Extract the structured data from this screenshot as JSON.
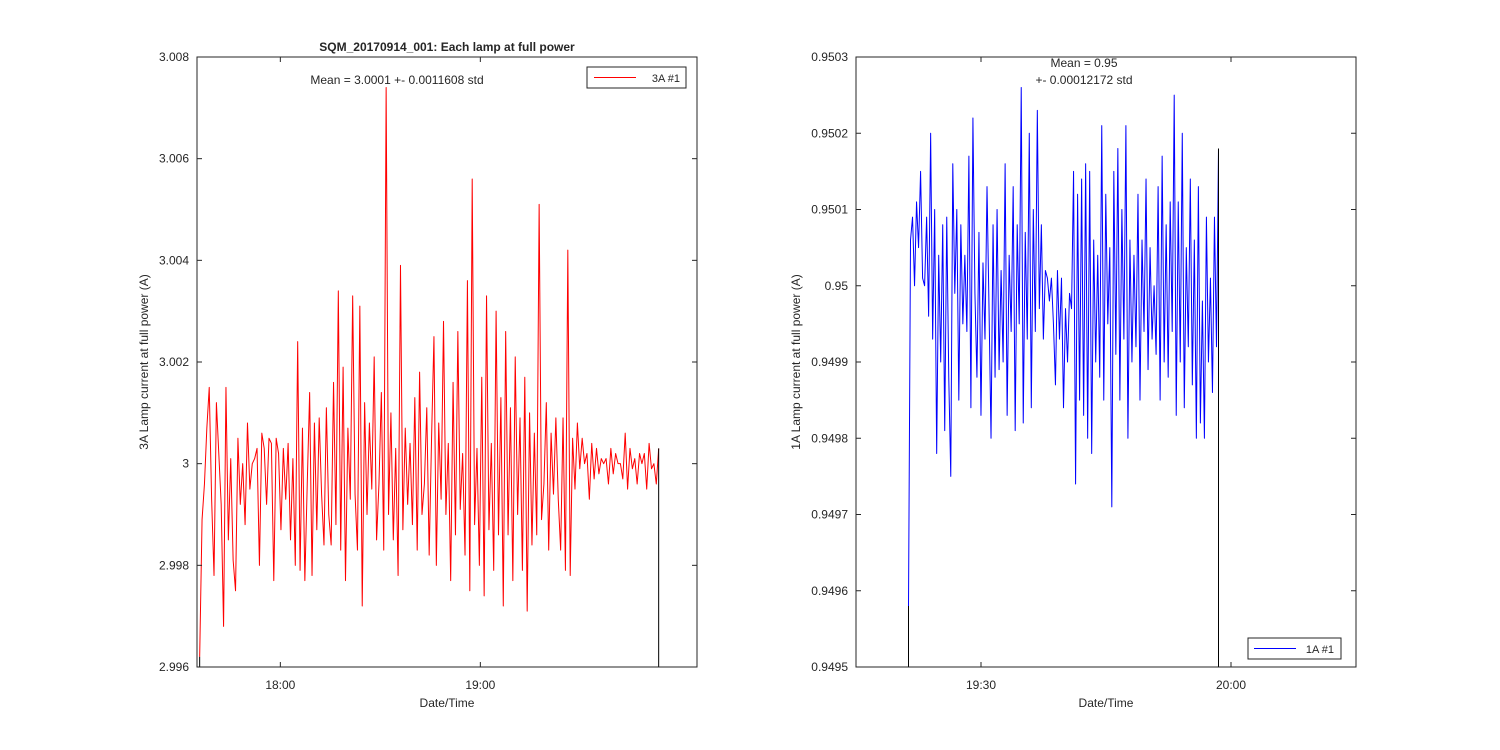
{
  "chart_data": [
    {
      "type": "line",
      "title": "SQM_20170914_001: Each lamp at full power",
      "xlabel": "Date/Time",
      "ylabel": "3A Lamp current at full power (A)",
      "xlim_minutes": [
        1055,
        1205
      ],
      "ylim": [
        2.996,
        3.008
      ],
      "yticks": [
        2.996,
        2.998,
        3.0,
        3.002,
        3.004,
        3.006,
        3.008
      ],
      "ytick_labels": [
        "2.996",
        "2.998",
        "3",
        "3.002",
        "3.004",
        "3.006",
        "3.008"
      ],
      "xticks_minutes": [
        1080,
        1140
      ],
      "xtick_labels": [
        "18:00",
        "19:00"
      ],
      "annotation": [
        "Mean = 3.0001 +- 0.0011608 std"
      ],
      "legend": {
        "label": "3A #1",
        "position": "top-right"
      },
      "series": [
        {
          "name": "3A #1",
          "color": "#ff0000",
          "x_start_minutes": 1055.8,
          "x_end_minutes": 1193.5,
          "values": [
            2.9962,
            2.9989,
            2.9996,
            3.0007,
            3.0015,
            2.9993,
            2.9978,
            3.0012,
            3.0002,
            2.9992,
            2.9968,
            3.0015,
            2.9985,
            3.0001,
            2.9981,
            2.9975,
            3.0005,
            2.9992,
            3.0,
            2.9988,
            3.0008,
            2.9995,
            3.0,
            3.0001,
            3.0003,
            2.998,
            3.0006,
            3.0003,
            2.9992,
            3.0005,
            3.0004,
            2.9977,
            3.0005,
            3.0002,
            2.9987,
            3.0003,
            2.9993,
            3.0004,
            2.9985,
            3.0001,
            2.998,
            3.0024,
            2.9979,
            3.0007,
            2.9977,
            2.9996,
            3.0014,
            2.9978,
            3.0008,
            2.9987,
            3.0009,
            2.9994,
            2.9984,
            3.0011,
            2.999,
            2.9984,
            3.0016,
            2.9988,
            3.0034,
            2.9983,
            3.0019,
            2.9977,
            3.0007,
            2.9993,
            3.0033,
            2.9994,
            2.9983,
            3.0031,
            2.9972,
            3.0012,
            2.999,
            3.0008,
            2.9995,
            3.0021,
            2.9985,
            2.9996,
            3.0014,
            2.9983,
            3.0074,
            2.999,
            3.001,
            2.9985,
            3.0003,
            2.9978,
            3.0039,
            2.9987,
            3.0007,
            2.9992,
            3.0004,
            2.9988,
            3.0013,
            2.9983,
            3.0018,
            2.999,
            2.9996,
            3.0011,
            2.9982,
            3.0005,
            3.0025,
            2.998,
            3.0008,
            2.9993,
            3.0028,
            2.999,
            3.0004,
            2.9977,
            3.0016,
            2.9986,
            3.0026,
            2.9991,
            3.0002,
            2.9982,
            3.0036,
            2.9975,
            3.0056,
            2.9988,
            3.0003,
            2.998,
            3.0017,
            2.9974,
            3.0033,
            2.9987,
            3.0004,
            2.9979,
            3.003,
            2.9986,
            3.0013,
            2.9972,
            3.0026,
            2.9986,
            3.0011,
            2.9977,
            3.0021,
            2.999,
            3.0009,
            2.9979,
            3.0017,
            2.9971,
            3.001,
            2.9984,
            3.0006,
            2.9986,
            3.0051,
            2.9989,
            2.9996,
            3.0012,
            2.9983,
            3.0006,
            2.9994,
            3.0009,
            2.9993,
            2.9983,
            3.0009,
            2.9979,
            3.0042,
            2.9978,
            3.0005,
            2.9995,
            3.0008,
            2.9999,
            3.0005,
            3.0,
            3.0002,
            2.9993,
            3.0004,
            2.9997,
            3.0003,
            2.9998,
            3.0001,
            3.0,
            3.0001,
            2.9996,
            3.0003,
            2.9998,
            3.0002,
            3.0,
            3.0,
            2.9997,
            3.0006,
            2.9995,
            3.0003,
            2.9999,
            3.0001,
            2.9996,
            3.0002,
            3.0,
            3.0002,
            2.9995,
            3.0004,
            2.9999,
            3.0,
            2.9996,
            3.0003
          ]
        }
      ]
    },
    {
      "type": "line",
      "title": "",
      "xlabel": "Date/Time",
      "ylabel": "1A Lamp current at full power (A)",
      "xlim_minutes": [
        1155,
        1215
      ],
      "ylim": [
        0.9495,
        0.9503
      ],
      "yticks": [
        0.9495,
        0.9496,
        0.9497,
        0.9498,
        0.9499,
        0.95,
        0.9501,
        0.9502,
        0.9503
      ],
      "ytick_labels": [
        "0.9495",
        "0.9496",
        "0.9497",
        "0.9498",
        "0.9499",
        "0.95",
        "0.9501",
        "0.9502",
        "0.9503"
      ],
      "xticks_minutes": [
        1170,
        1200
      ],
      "xtick_labels": [
        "19:30",
        "20:00"
      ],
      "annotation": [
        "Mean = 0.95",
        "+- 0.00012172 std"
      ],
      "legend": {
        "label": "1A #1",
        "position": "bottom-right"
      },
      "series": [
        {
          "name": "1A #1",
          "color": "#0000ff",
          "x_start_minutes": 1161.3,
          "x_end_minutes": 1198.5,
          "values": [
            0.94958,
            0.95006,
            0.95009,
            0.95,
            0.95011,
            0.95005,
            0.95015,
            0.95001,
            0.95,
            0.95009,
            0.94996,
            0.9502,
            0.94993,
            0.9501,
            0.94978,
            0.95004,
            0.9499,
            0.95008,
            0.94981,
            0.95009,
            0.94988,
            0.94975,
            0.95016,
            0.94999,
            0.9501,
            0.94985,
            0.95008,
            0.94995,
            0.95004,
            0.94994,
            0.95017,
            0.94984,
            0.95022,
            0.94999,
            0.94988,
            0.95007,
            0.94983,
            0.95003,
            0.94993,
            0.95013,
            0.94997,
            0.9498,
            0.95008,
            0.94988,
            0.9501,
            0.94989,
            0.95002,
            0.9499,
            0.95016,
            0.94983,
            0.95004,
            0.94994,
            0.95013,
            0.94981,
            0.95008,
            0.94995,
            0.95026,
            0.94982,
            0.95007,
            0.94993,
            0.9502,
            0.94984,
            0.9501,
            0.94994,
            0.95023,
            0.94997,
            0.95008,
            0.94993,
            0.95002,
            0.95001,
            0.94998,
            0.95001,
            0.94995,
            0.94987,
            0.95002,
            0.94993,
            0.95001,
            0.94984,
            0.94997,
            0.9499,
            0.94999,
            0.94997,
            0.95015,
            0.94974,
            0.95012,
            0.94985,
            0.95014,
            0.94983,
            0.95016,
            0.9498,
            0.95015,
            0.94978,
            0.95006,
            0.9499,
            0.95004,
            0.94988,
            0.95021,
            0.94985,
            0.95012,
            0.94995,
            0.95005,
            0.94971,
            0.95015,
            0.94991,
            0.95018,
            0.94985,
            0.9501,
            0.94993,
            0.95021,
            0.9498,
            0.95006,
            0.9499,
            0.95004,
            0.94992,
            0.95012,
            0.94985,
            0.95006,
            0.94994,
            0.95014,
            0.94989,
            0.95005,
            0.94993,
            0.95,
            0.94991,
            0.95013,
            0.94985,
            0.95017,
            0.9499,
            0.95008,
            0.94988,
            0.95011,
            0.94994,
            0.95025,
            0.94983,
            0.95011,
            0.9499,
            0.9502,
            0.94984,
            0.95005,
            0.94992,
            0.95014,
            0.94987,
            0.95006,
            0.9498,
            0.95013,
            0.94982,
            0.94998,
            0.9498,
            0.95009,
            0.9499,
            0.95001,
            0.94986,
            0.95009,
            0.94992,
            0.95018
          ]
        }
      ]
    }
  ]
}
